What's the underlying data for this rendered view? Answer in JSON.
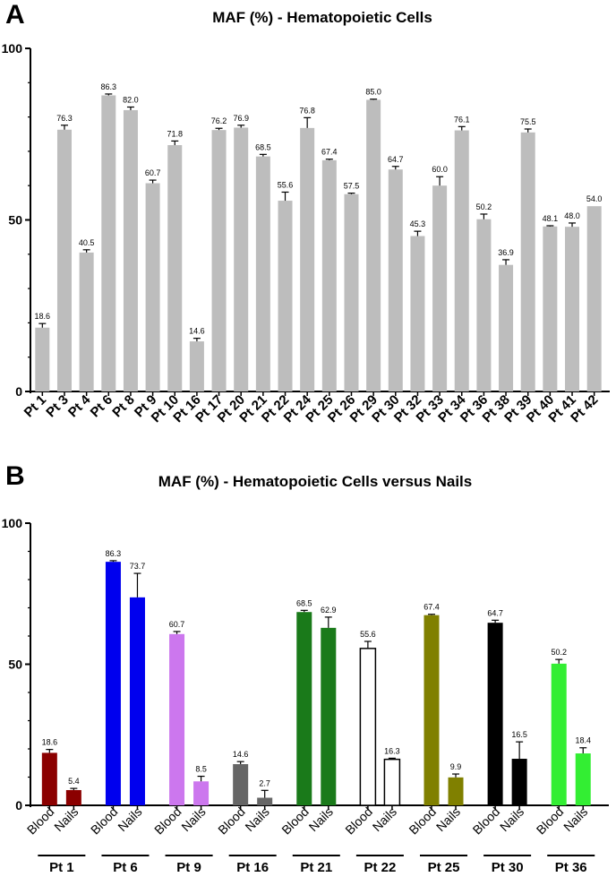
{
  "chart_data": [
    {
      "panel": "A",
      "type": "bar",
      "title": "MAF (%) - Hematopoietic Cells",
      "xlabel": "",
      "ylabel": "",
      "ylim": [
        0,
        100
      ],
      "yticks": [
        0,
        50,
        100
      ],
      "categories": [
        "Pt 1",
        "Pt 3",
        "Pt 4",
        "Pt 6",
        "Pt 8",
        "Pt 9",
        "Pt 10",
        "Pt 16",
        "Pt 17",
        "Pt 20",
        "Pt 21",
        "Pt 22",
        "Pt 24",
        "Pt 25",
        "Pt 26",
        "Pt 29",
        "Pt 30",
        "Pt 32",
        "Pt 33",
        "Pt 34",
        "Pt 36",
        "Pt 38",
        "Pt 39",
        "Pt 40",
        "Pt 41",
        "Pt 42"
      ],
      "values": [
        18.6,
        76.3,
        40.5,
        86.3,
        82.0,
        60.7,
        71.8,
        14.6,
        76.2,
        76.9,
        68.5,
        55.6,
        76.8,
        67.4,
        57.5,
        85.0,
        64.7,
        45.3,
        60.0,
        76.1,
        50.2,
        36.9,
        75.5,
        48.1,
        48.0,
        54.0
      ],
      "labels": [
        "18.6",
        "76.3",
        "40.5",
        "86.3",
        "82.0",
        "60.7",
        "71.8",
        "14.6",
        "76.2",
        "76.9",
        "68.5",
        "55.6",
        "76.8",
        "67.4",
        "57.5",
        "85.0",
        "64.7",
        "45.3",
        "60.0",
        "76.1",
        "50.2",
        "36.9",
        "75.5",
        "48.1",
        "48.0",
        "54.0"
      ],
      "errors": [
        1.2,
        1.3,
        0.8,
        0.4,
        0.9,
        0.9,
        1.2,
        0.9,
        0.5,
        0.7,
        0.6,
        2.5,
        3.0,
        0.3,
        0.3,
        0.2,
        0.9,
        1.4,
        2.6,
        1.1,
        1.5,
        1.5,
        1.0,
        0.2,
        1.1,
        0.0
      ],
      "color": "#bdbdbd"
    },
    {
      "panel": "B",
      "type": "bar",
      "title": "MAF (%) - Hematopoietic Cells versus Nails",
      "xlabel": "",
      "ylabel": "",
      "ylim": [
        0,
        100
      ],
      "yticks": [
        0,
        50,
        100
      ],
      "subcategories": [
        "Blood",
        "Nails"
      ],
      "groups": [
        {
          "name": "Pt 1",
          "color": "#8b0000",
          "fill": "solid",
          "values": [
            18.6,
            5.4
          ],
          "labels": [
            "18.6",
            "5.4"
          ],
          "errors": [
            1.2,
            0.6
          ]
        },
        {
          "name": "Pt 6",
          "color": "#0000ee",
          "fill": "solid",
          "values": [
            86.3,
            73.7
          ],
          "labels": [
            "86.3",
            "73.7"
          ],
          "errors": [
            0.4,
            8.5
          ]
        },
        {
          "name": "Pt 9",
          "color": "#cc77ee",
          "fill": "solid",
          "values": [
            60.7,
            8.5
          ],
          "labels": [
            "60.7",
            "8.5"
          ],
          "errors": [
            0.9,
            1.8
          ]
        },
        {
          "name": "Pt 16",
          "color": "#666666",
          "fill": "solid",
          "values": [
            14.6,
            2.7
          ],
          "labels": [
            "14.6",
            "2.7"
          ],
          "errors": [
            0.9,
            2.6
          ]
        },
        {
          "name": "Pt 21",
          "color": "#1a7a1a",
          "fill": "solid",
          "values": [
            68.5,
            62.9
          ],
          "labels": [
            "68.5",
            "62.9"
          ],
          "errors": [
            0.6,
            3.8
          ]
        },
        {
          "name": "Pt 22",
          "color": "#000000",
          "fill": "outline",
          "values": [
            55.6,
            16.3
          ],
          "labels": [
            "55.6",
            "16.3"
          ],
          "errors": [
            2.5,
            0.4
          ]
        },
        {
          "name": "Pt 25",
          "color": "#808000",
          "fill": "solid",
          "values": [
            67.4,
            9.9
          ],
          "labels": [
            "67.4",
            "9.9"
          ],
          "errors": [
            0.3,
            1.2
          ]
        },
        {
          "name": "Pt 30",
          "color": "#000000",
          "fill": "solid",
          "values": [
            64.7,
            16.5
          ],
          "labels": [
            "64.7",
            "16.5"
          ],
          "errors": [
            0.9,
            6.0
          ]
        },
        {
          "name": "Pt 36",
          "color": "#33ee33",
          "fill": "solid",
          "values": [
            50.2,
            18.4
          ],
          "labels": [
            "50.2",
            "18.4"
          ],
          "errors": [
            1.5,
            2.0
          ]
        }
      ]
    }
  ]
}
